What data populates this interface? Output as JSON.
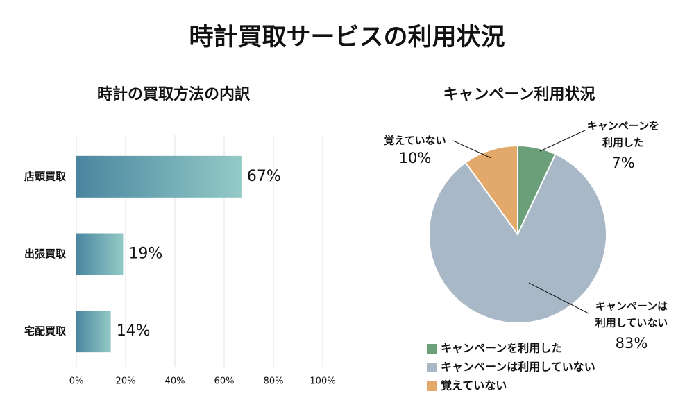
{
  "title": "時計買取サービスの利用状況",
  "chart_data": [
    {
      "type": "bar",
      "orientation": "horizontal",
      "title": "時計の買取方法の内訳",
      "categories": [
        "店頭買取",
        "出張買取",
        "宅配買取"
      ],
      "values": [
        67,
        19,
        14
      ],
      "value_labels": [
        "67%",
        "19%",
        "14%"
      ],
      "gradient": [
        "#4a86a0",
        "#93cac6"
      ],
      "xlim": [
        0,
        100
      ],
      "xticks": [
        {
          "value": 0,
          "label": "0%"
        },
        {
          "value": 20,
          "label": "20%"
        },
        {
          "value": 40,
          "label": "40%"
        },
        {
          "value": 60,
          "label": "60%"
        },
        {
          "value": 80,
          "label": "80%"
        },
        {
          "value": 100,
          "label": "100%"
        }
      ],
      "grid": true
    },
    {
      "type": "pie",
      "title": "キャンペーン利用状況",
      "categories": [
        "キャンペーンを利用した",
        "キャンペーンは利用していない",
        "覚えていない"
      ],
      "labels": [
        [
          "キャンペーンを",
          "利用した"
        ],
        [
          "キャンペーンは",
          "利用していない"
        ],
        [
          "覚えていない"
        ]
      ],
      "values": [
        7,
        83,
        10
      ],
      "value_labels": [
        "7%",
        "83%",
        "10%"
      ],
      "colors": [
        "#6b9f7a",
        "#a9b8c6",
        "#e2a96b"
      ],
      "legend": "bottom"
    }
  ]
}
